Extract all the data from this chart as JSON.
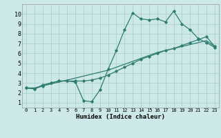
{
  "xlabel": "Humidex (Indice chaleur)",
  "background_color": "#cce8e8",
  "grid_color": "#aacccc",
  "line_color": "#2e7d6e",
  "xlim": [
    -0.5,
    23.5
  ],
  "ylim": [
    0.5,
    11
  ],
  "xticks": [
    0,
    1,
    2,
    3,
    4,
    5,
    6,
    7,
    8,
    9,
    10,
    11,
    12,
    13,
    14,
    15,
    16,
    17,
    18,
    19,
    20,
    21,
    22,
    23
  ],
  "yticks": [
    1,
    2,
    3,
    4,
    5,
    6,
    7,
    8,
    9,
    10
  ],
  "line1_x": [
    0,
    1,
    2,
    3,
    4,
    5,
    6,
    7,
    8,
    9,
    10,
    11,
    12,
    13,
    14,
    15,
    16,
    17,
    18,
    19,
    20,
    21,
    22,
    23
  ],
  "line1_y": [
    2.5,
    2.5,
    2.7,
    2.9,
    3.1,
    3.3,
    3.5,
    3.7,
    3.9,
    4.1,
    4.3,
    4.6,
    4.9,
    5.2,
    5.5,
    5.8,
    6.1,
    6.3,
    6.5,
    6.7,
    6.9,
    7.1,
    7.3,
    6.7
  ],
  "line2_x": [
    0,
    1,
    2,
    3,
    4,
    5,
    6,
    7,
    8,
    9,
    10,
    11,
    12,
    13,
    14,
    15,
    16,
    17,
    18,
    19,
    20,
    21,
    22,
    23
  ],
  "line2_y": [
    2.5,
    2.4,
    2.7,
    3.0,
    3.2,
    3.2,
    3.2,
    3.2,
    3.3,
    3.5,
    3.8,
    4.2,
    4.6,
    5.0,
    5.4,
    5.7,
    6.0,
    6.3,
    6.5,
    6.8,
    7.1,
    7.4,
    7.7,
    6.7
  ],
  "line3_x": [
    0,
    1,
    2,
    3,
    4,
    5,
    6,
    7,
    8,
    9,
    10,
    11,
    12,
    13,
    14,
    15,
    16,
    17,
    18,
    19,
    20,
    21,
    22,
    23
  ],
  "line3_y": [
    2.5,
    2.4,
    2.8,
    3.0,
    3.2,
    3.2,
    3.1,
    1.2,
    1.1,
    2.3,
    4.4,
    6.3,
    8.4,
    10.1,
    9.5,
    9.4,
    9.5,
    9.2,
    10.3,
    9.0,
    8.4,
    7.5,
    7.1,
    6.6
  ]
}
